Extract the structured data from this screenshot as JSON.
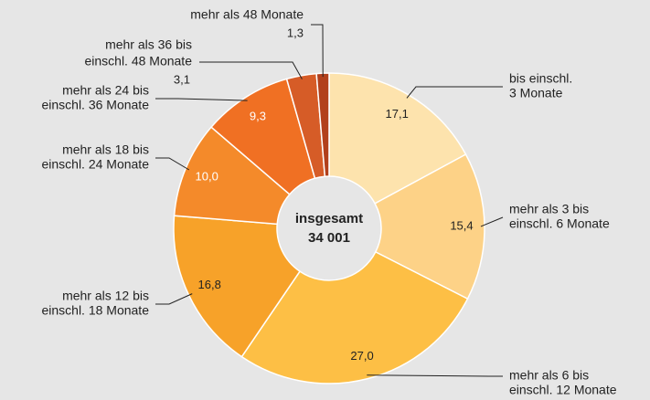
{
  "chart_data": {
    "type": "donut",
    "categories": [
      [
        "bis einschl.",
        "3 Monate"
      ],
      [
        "mehr als 3 bis",
        "einschl. 6 Monate"
      ],
      [
        "mehr als 6 bis",
        "einschl. 12 Monate"
      ],
      [
        "mehr als 12 bis",
        "einschl. 18 Monate"
      ],
      [
        "mehr als 18 bis",
        "einschl. 24 Monate"
      ],
      [
        "mehr als 24 bis",
        "einschl. 36 Monate"
      ],
      [
        "mehr als 36 bis",
        "einschl. 48 Monate"
      ],
      [
        "mehr als 48 Monate"
      ]
    ],
    "values": [
      17.1,
      15.4,
      27.0,
      16.8,
      10.0,
      9.3,
      3.1,
      1.3
    ],
    "value_labels": [
      "17,1",
      "15,4",
      "27,0",
      "16,8",
      "10,0",
      "9,3",
      "3,1",
      "1,3"
    ],
    "colors": [
      "#fde3ad",
      "#fdd287",
      "#fdbf45",
      "#f7a229",
      "#f48a2a",
      "#f07023",
      "#d65c27",
      "#b2401c"
    ],
    "center_text": [
      "insgesamt",
      "34 001"
    ]
  }
}
